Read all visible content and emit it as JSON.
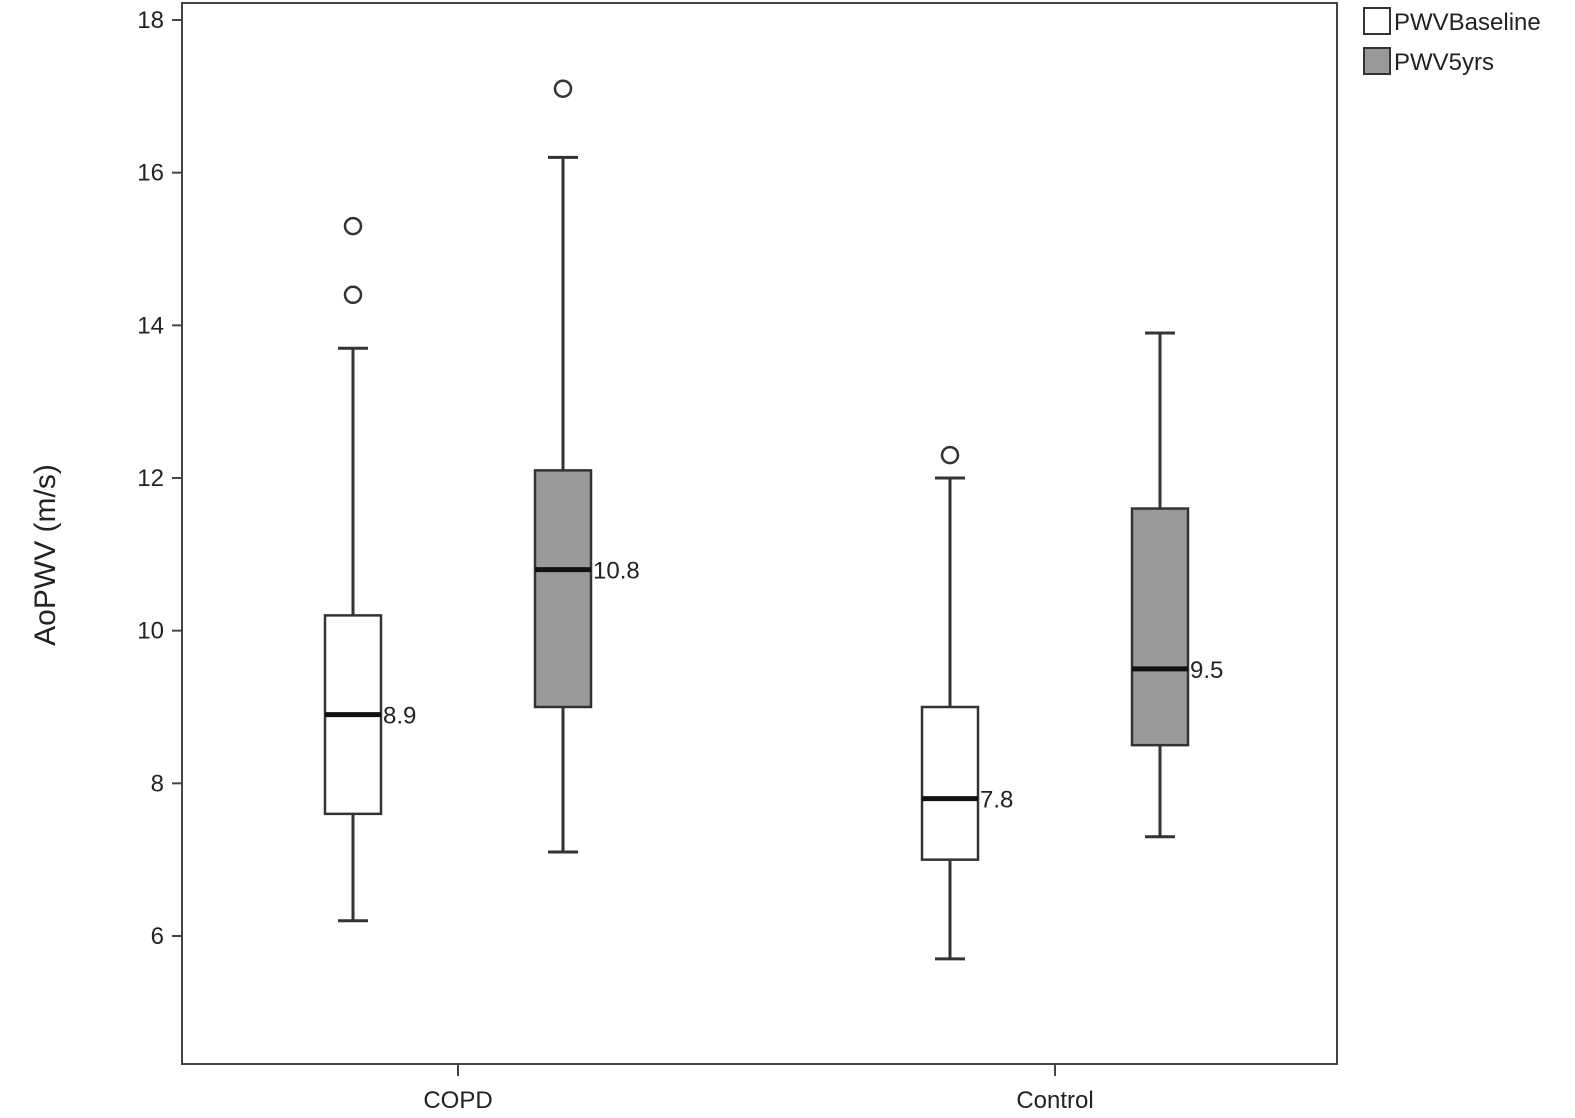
{
  "chart_data": {
    "type": "boxplot",
    "ylabel": "AoPWV (m/s)",
    "xlabel": "",
    "ylim": [
      4.3,
      18.2
    ],
    "yticks": [
      6,
      8,
      10,
      12,
      14,
      16,
      18
    ],
    "ytick_labels": [
      "6",
      "8",
      "10",
      "12",
      "14",
      "16",
      "18"
    ],
    "categories": [
      "COPD",
      "Control"
    ],
    "grid": false,
    "legend_position": "top-right, outside plot",
    "series": [
      {
        "name": "PWVBaseline",
        "color": "#ffffff",
        "boxes": [
          {
            "category": "COPD",
            "whisker_low": 6.2,
            "q1": 7.6,
            "median": 8.9,
            "q3": 10.2,
            "whisker_high": 13.7,
            "outliers": [
              14.4,
              15.3
            ],
            "median_label": "8.9"
          },
          {
            "category": "Control",
            "whisker_low": 5.7,
            "q1": 7.0,
            "median": 7.8,
            "q3": 9.0,
            "whisker_high": 12.0,
            "outliers": [
              12.3
            ],
            "median_label": "7.8"
          }
        ]
      },
      {
        "name": "PWV5yrs",
        "color": "#999999",
        "boxes": [
          {
            "category": "COPD",
            "whisker_low": 7.1,
            "q1": 9.0,
            "median": 10.8,
            "q3": 12.1,
            "whisker_high": 16.2,
            "outliers": [
              17.1
            ],
            "median_label": "10.8"
          },
          {
            "category": "Control",
            "whisker_low": 7.3,
            "q1": 8.5,
            "median": 9.5,
            "q3": 11.6,
            "whisker_high": 13.9,
            "outliers": [],
            "median_label": "9.5"
          }
        ]
      }
    ]
  },
  "colors": {
    "box_stroke": "#333333",
    "axis": "#444444",
    "median_line": "#111111"
  }
}
